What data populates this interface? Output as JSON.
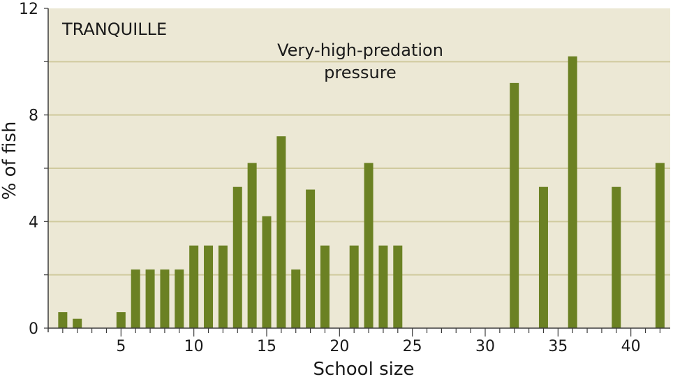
{
  "chart_data": {
    "type": "bar",
    "panel_label": "TRANQUILLE",
    "annotation": "Very-high-predation\npressure",
    "xlabel": "School size",
    "ylabel": "% of fish",
    "xlim": [
      0,
      42.7
    ],
    "ylim": [
      0,
      12
    ],
    "x_ticks": [
      5,
      10,
      15,
      20,
      25,
      30,
      35,
      40
    ],
    "y_ticks": [
      0,
      4,
      8,
      12
    ],
    "y_gridlines": [
      2,
      4,
      6,
      8,
      10
    ],
    "grid": true,
    "x": [
      1,
      2,
      5,
      6,
      7,
      8,
      9,
      10,
      11,
      12,
      13,
      14,
      15,
      16,
      17,
      18,
      19,
      21,
      22,
      23,
      24,
      32,
      34,
      36,
      39,
      42
    ],
    "values": [
      0.6,
      0.35,
      0.6,
      2.2,
      2.2,
      2.2,
      2.2,
      3.1,
      3.1,
      3.1,
      5.3,
      6.2,
      4.2,
      7.2,
      2.2,
      5.2,
      3.1,
      3.1,
      6.2,
      3.1,
      3.1,
      9.2,
      5.3,
      10.2,
      5.3,
      6.2
    ],
    "colors": {
      "plot_background": "#ece8d5",
      "bar": "#6b8123",
      "grid": "#d0ca9e",
      "axis": "#3c3c3c",
      "text": "#1a1a1a"
    }
  }
}
